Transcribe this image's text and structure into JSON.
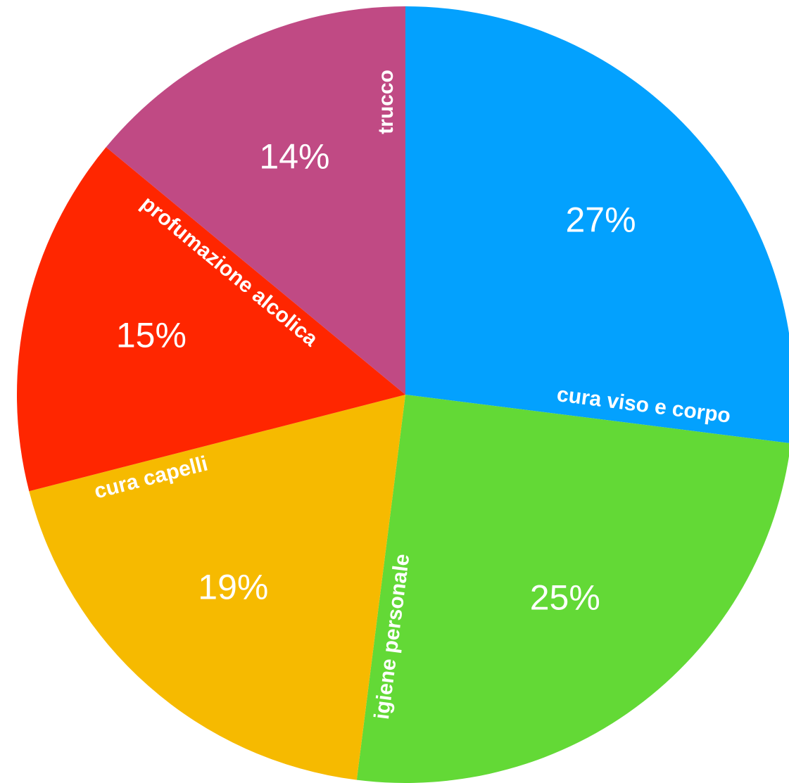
{
  "chart_data": {
    "type": "pie",
    "categories": [
      "cura viso e corpo",
      "igiene personale",
      "cura capelli",
      "profumazione alcolica",
      "trucco"
    ],
    "values": [
      27,
      25,
      19,
      15,
      14
    ],
    "value_labels": [
      "27%",
      "25%",
      "19%",
      "15%",
      "14%"
    ],
    "colors": [
      "#03a1fe",
      "#63d936",
      "#f6ba00",
      "#ff2600",
      "#c04a84"
    ]
  }
}
